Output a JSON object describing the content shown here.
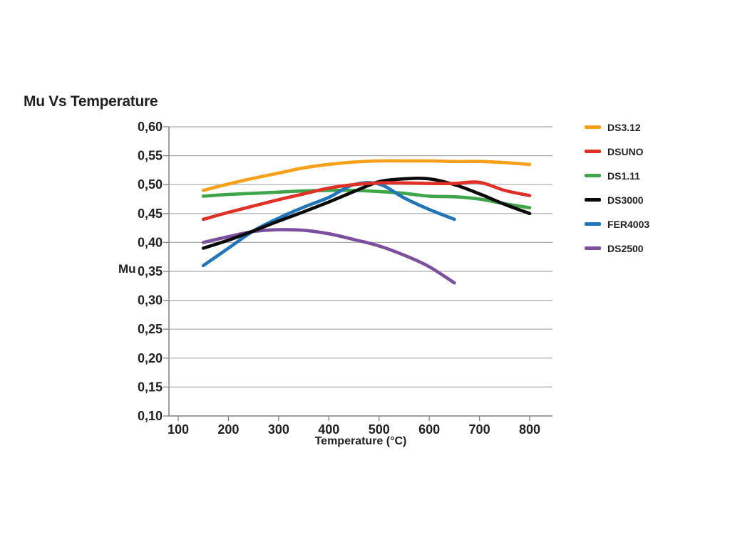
{
  "page": {
    "title": "Mu Vs Temperature"
  },
  "colors": {
    "gridline": "#A7A9AC",
    "axis": "#808285",
    "text": "#231F20",
    "background": "#FFFFFF"
  },
  "chart_data": {
    "type": "line",
    "title": "Mu Vs Temperature",
    "xlabel": "Temperature (°C)",
    "ylabel": "Mu",
    "xlim": [
      80,
      845
    ],
    "ylim": [
      0.1,
      0.6
    ],
    "x_ticks": [
      100,
      200,
      300,
      400,
      500,
      600,
      700,
      800
    ],
    "x_tick_labels": [
      "100",
      "200",
      "300",
      "400",
      "500",
      "600",
      "700",
      "800"
    ],
    "y_ticks": [
      0.6,
      0.55,
      0.5,
      0.45,
      0.4,
      0.35,
      0.3,
      0.25,
      0.2,
      0.15,
      0.1
    ],
    "y_tick_labels": [
      "0,60",
      "0,55",
      "0,50",
      "0,45",
      "0,40",
      "0,35",
      "0,30",
      "0,25",
      "0,20",
      "0,15",
      "0,10"
    ],
    "grid": "horizontal",
    "legend_position": "right",
    "series": [
      {
        "name": "DS3.12",
        "color": "#F6A01B",
        "x": [
          150,
          200,
          250,
          300,
          350,
          400,
          450,
          500,
          550,
          600,
          650,
          700,
          750,
          800
        ],
        "values": [
          0.49,
          0.501,
          0.511,
          0.52,
          0.529,
          0.535,
          0.539,
          0.541,
          0.541,
          0.541,
          0.54,
          0.54,
          0.538,
          0.535
        ]
      },
      {
        "name": "DSUNO",
        "color": "#E03127",
        "x": [
          150,
          200,
          250,
          300,
          350,
          400,
          450,
          500,
          550,
          600,
          650,
          700,
          750,
          800
        ],
        "values": [
          0.44,
          0.452,
          0.463,
          0.474,
          0.484,
          0.494,
          0.5,
          0.503,
          0.503,
          0.502,
          0.502,
          0.504,
          0.49,
          0.481
        ]
      },
      {
        "name": "DS1.11",
        "color": "#3EA649",
        "x": [
          150,
          200,
          250,
          300,
          350,
          400,
          450,
          500,
          550,
          600,
          650,
          700,
          750,
          800
        ],
        "values": [
          0.48,
          0.483,
          0.485,
          0.487,
          0.489,
          0.49,
          0.49,
          0.488,
          0.485,
          0.48,
          0.479,
          0.475,
          0.467,
          0.46
        ]
      },
      {
        "name": "DS3000",
        "color": "#0A0A0A",
        "x": [
          150,
          200,
          250,
          300,
          350,
          400,
          450,
          500,
          550,
          600,
          650,
          700,
          750,
          800
        ],
        "values": [
          0.39,
          0.404,
          0.42,
          0.437,
          0.453,
          0.47,
          0.488,
          0.505,
          0.51,
          0.51,
          0.5,
          0.484,
          0.466,
          0.45
        ]
      },
      {
        "name": "FER4003",
        "color": "#2176B9",
        "x": [
          150,
          200,
          250,
          300,
          350,
          400,
          450,
          500,
          550,
          600,
          650
        ],
        "values": [
          0.36,
          0.39,
          0.42,
          0.442,
          0.461,
          0.478,
          0.5,
          0.501,
          0.477,
          0.457,
          0.44
        ]
      },
      {
        "name": "DS2500",
        "color": "#7C509F",
        "x": [
          150,
          200,
          250,
          300,
          350,
          400,
          450,
          500,
          550,
          600,
          650
        ],
        "values": [
          0.4,
          0.41,
          0.419,
          0.422,
          0.421,
          0.415,
          0.405,
          0.394,
          0.378,
          0.358,
          0.33
        ]
      }
    ]
  }
}
